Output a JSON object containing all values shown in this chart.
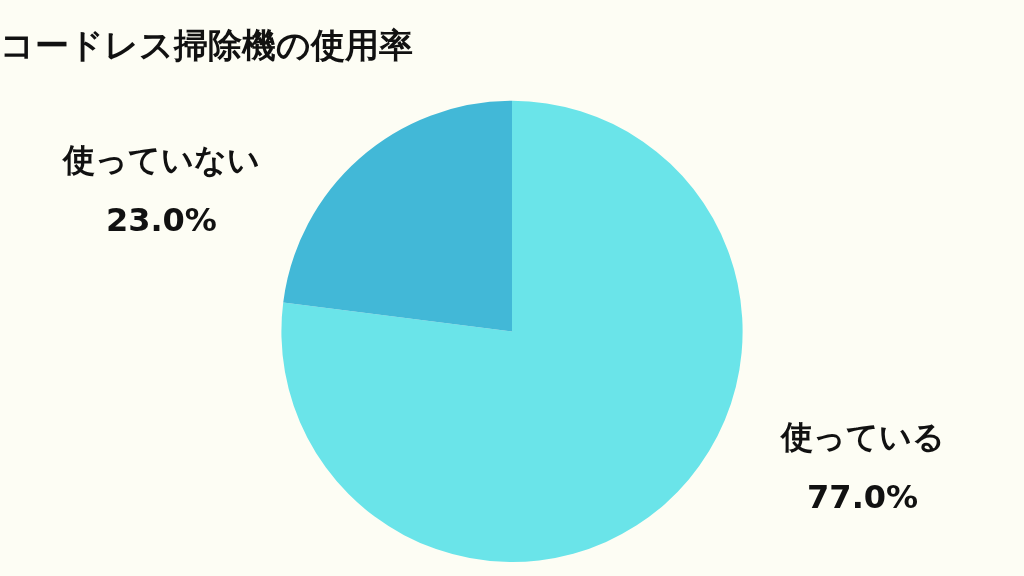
{
  "chart_data": {
    "type": "pie",
    "title": "コードレス掃除機の使用率",
    "categories": [
      "使っている",
      "使っていない"
    ],
    "values": [
      77.0,
      23.0
    ],
    "value_labels": [
      "77.0%",
      "23.0%"
    ],
    "colors": [
      "#6ae4e9",
      "#42b8d7"
    ],
    "legend": false
  }
}
